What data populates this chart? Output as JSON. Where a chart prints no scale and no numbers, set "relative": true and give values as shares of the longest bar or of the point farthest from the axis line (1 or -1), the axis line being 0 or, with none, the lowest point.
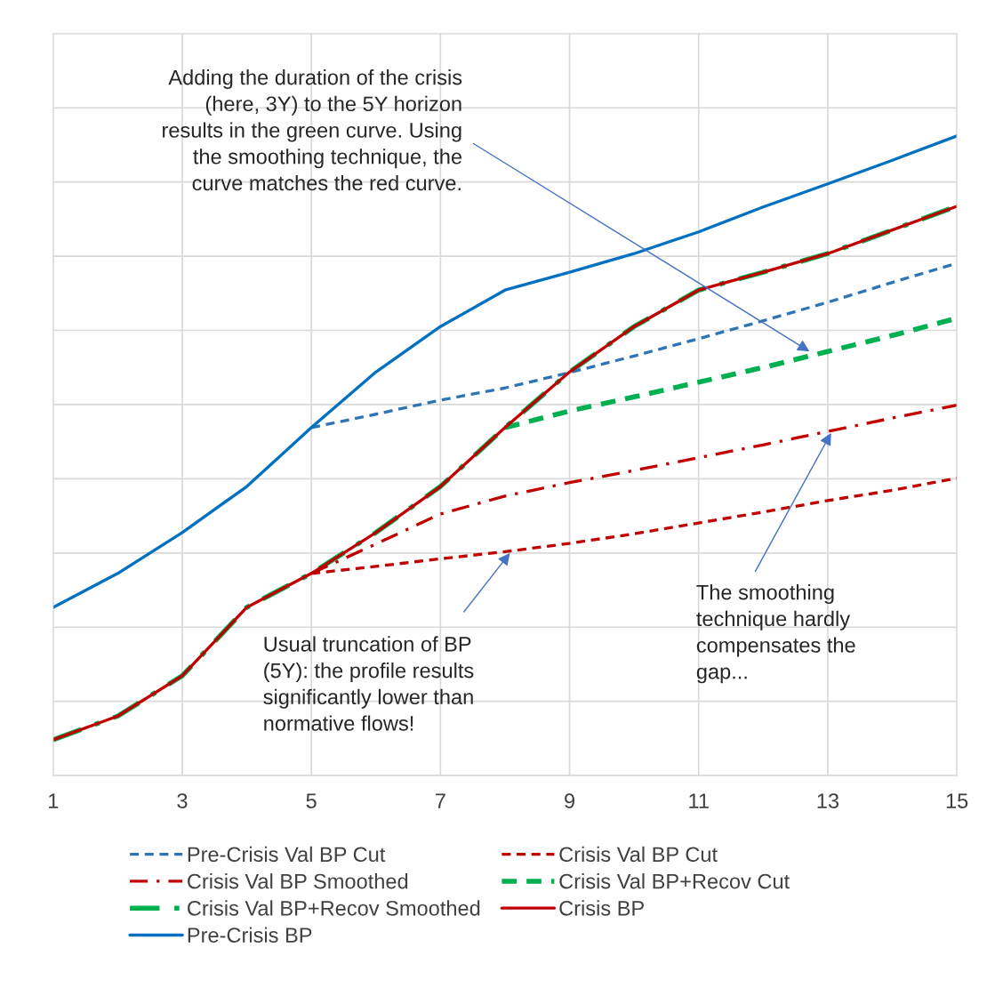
{
  "chart_data": {
    "type": "line",
    "relative": true,
    "x": [
      1,
      2,
      3,
      4,
      5,
      6,
      7,
      8,
      9,
      10,
      11,
      12,
      13,
      14,
      15
    ],
    "xlim": [
      1,
      15
    ],
    "xticks": [
      1,
      3,
      5,
      7,
      9,
      11,
      13,
      15
    ],
    "tick_labels": "x",
    "grid": true,
    "legend": "bottom",
    "marker": "none",
    "series": [
      {
        "name": "Pre-Crisis Val BP Cut",
        "color": "#2e75b6",
        "line_style": "dashed",
        "values": [
          null,
          null,
          null,
          null,
          0.544,
          0.565,
          0.587,
          0.606,
          0.63,
          0.656,
          0.683,
          0.711,
          0.74,
          0.771,
          0.801
        ]
      },
      {
        "name": "Crisis Val BP Cut",
        "color": "#c00000",
        "line_style": "dashed",
        "values": [
          null,
          null,
          null,
          null,
          0.316,
          0.327,
          0.339,
          0.35,
          0.363,
          0.378,
          0.395,
          0.412,
          0.43,
          0.446,
          0.465
        ]
      },
      {
        "name": "Crisis Val BP Smoothed",
        "color": "#c00000",
        "line_style": "dashdot",
        "values": [
          null,
          null,
          null,
          null,
          0.316,
          0.362,
          0.409,
          0.437,
          0.458,
          0.477,
          0.497,
          0.517,
          0.538,
          0.559,
          0.579
        ]
      },
      {
        "name": "Crisis Val BP+Recov Cut",
        "color": "#00b050",
        "line_style": "dashed",
        "values": [
          null,
          null,
          null,
          null,
          null,
          null,
          null,
          0.544,
          0.57,
          0.592,
          0.615,
          0.638,
          0.663,
          0.688,
          0.715
        ]
      },
      {
        "name": "Crisis Val BP+Recov Smoothed",
        "color": "#00b050",
        "line_style": "dashdot",
        "values": [
          0.056,
          0.093,
          0.156,
          0.263,
          0.316,
          0.38,
          0.452,
          0.544,
          0.631,
          0.702,
          0.759,
          0.787,
          0.816,
          0.853,
          0.89
        ]
      },
      {
        "name": "Crisis BP",
        "color": "#c00000",
        "line_style": "solid",
        "values": [
          0.056,
          0.093,
          0.156,
          0.263,
          0.316,
          0.38,
          0.452,
          0.544,
          0.631,
          0.702,
          0.759,
          0.787,
          0.816,
          0.853,
          0.89
        ]
      },
      {
        "name": "Pre-Crisis BP",
        "color": "#0070c0",
        "line_style": "solid",
        "values": [
          0.263,
          0.316,
          0.38,
          0.452,
          0.544,
          0.631,
          0.702,
          0.759,
          0.787,
          0.816,
          0.85,
          0.889,
          0.925,
          0.962,
          1
        ]
      }
    ],
    "annotations": [
      {
        "text": "Adding the duration of the crisis\n(here, 3Y) to the 5Y horizon\nresults in the green curve. Using\nthe smoothing technique, the\ncurve matches the red curve.",
        "x": 12.75,
        "y": 0.661
      },
      {
        "text": "Usual truncation of BP\n(5Y): the profile results\nsignificantly lower than\nnormative flows!",
        "x": 8.1,
        "y": 0.351
      },
      {
        "text": "The smoothing\ntechnique hardly\ncompensates the\ngap...",
        "x": 13.07,
        "y": 0.539
      }
    ]
  }
}
